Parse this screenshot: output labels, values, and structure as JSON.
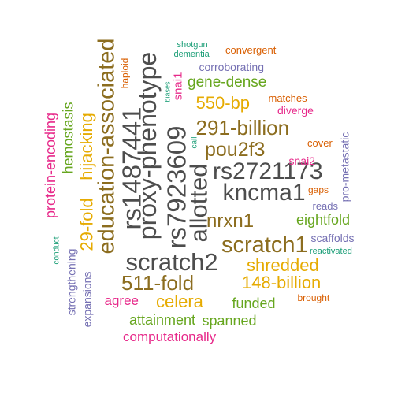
{
  "words": [
    {
      "text": "scratch2",
      "color": "#4d4d4d"
    },
    {
      "text": "rs1487441",
      "color": "#4d4d4d"
    },
    {
      "text": "proxy-phenotype",
      "color": "#4d4d4d"
    },
    {
      "text": "rs7923609",
      "color": "#4d4d4d"
    },
    {
      "text": "allotted",
      "color": "#4d4d4d"
    },
    {
      "text": "kncma1",
      "color": "#4d4d4d"
    },
    {
      "text": "rs2721173",
      "color": "#4d4d4d"
    },
    {
      "text": "education-associated",
      "color": "#8c6d1f"
    },
    {
      "text": "scratch1",
      "color": "#8c6d1f"
    },
    {
      "text": "511-fold",
      "color": "#8c6d1f"
    },
    {
      "text": "291-billion",
      "color": "#8c6d1f"
    },
    {
      "text": "pou2f3",
      "color": "#8c6d1f"
    },
    {
      "text": "nrxn1",
      "color": "#8c6d1f"
    },
    {
      "text": "29-fold",
      "color": "#e6ab02"
    },
    {
      "text": "hijacking",
      "color": "#e6ab02"
    },
    {
      "text": "550-bp",
      "color": "#e6ab02"
    },
    {
      "text": "shredded",
      "color": "#e6ab02"
    },
    {
      "text": "148-billion",
      "color": "#e6ab02"
    },
    {
      "text": "celera",
      "color": "#e6ab02"
    },
    {
      "text": "hemostasis",
      "color": "#66a61e"
    },
    {
      "text": "gene-dense",
      "color": "#66a61e"
    },
    {
      "text": "eightfold",
      "color": "#66a61e"
    },
    {
      "text": "funded",
      "color": "#66a61e"
    },
    {
      "text": "attainment",
      "color": "#66a61e"
    },
    {
      "text": "spanned",
      "color": "#66a61e"
    },
    {
      "text": "protein-encoding",
      "color": "#e7298a"
    },
    {
      "text": "agree",
      "color": "#e7298a"
    },
    {
      "text": "computationally",
      "color": "#e7298a"
    },
    {
      "text": "snai1",
      "color": "#e7298a"
    },
    {
      "text": "snai2",
      "color": "#e7298a"
    },
    {
      "text": "diverge",
      "color": "#e7298a"
    },
    {
      "text": "matches",
      "color": "#d95f02"
    },
    {
      "text": "cover",
      "color": "#d95f02"
    },
    {
      "text": "gaps",
      "color": "#d95f02"
    },
    {
      "text": "brought",
      "color": "#d95f02"
    },
    {
      "text": "convergent",
      "color": "#d95f02"
    },
    {
      "text": "haploid",
      "color": "#d95f02"
    },
    {
      "text": "corroborating",
      "color": "#7570b3"
    },
    {
      "text": "strengthening",
      "color": "#7570b3"
    },
    {
      "text": "expansions",
      "color": "#7570b3"
    },
    {
      "text": "scaffolds",
      "color": "#7570b3"
    },
    {
      "text": "reads",
      "color": "#7570b3"
    },
    {
      "text": "pro-metastatic",
      "color": "#7570b3"
    },
    {
      "text": "shotgun",
      "color": "#1b9e77"
    },
    {
      "text": "dementia",
      "color": "#1b9e77"
    },
    {
      "text": "biases",
      "color": "#1b9e77"
    },
    {
      "text": "call",
      "color": "#1b9e77"
    },
    {
      "text": "conduct",
      "color": "#1b9e77"
    },
    {
      "text": "reactivated",
      "color": "#1b9e77"
    }
  ]
}
